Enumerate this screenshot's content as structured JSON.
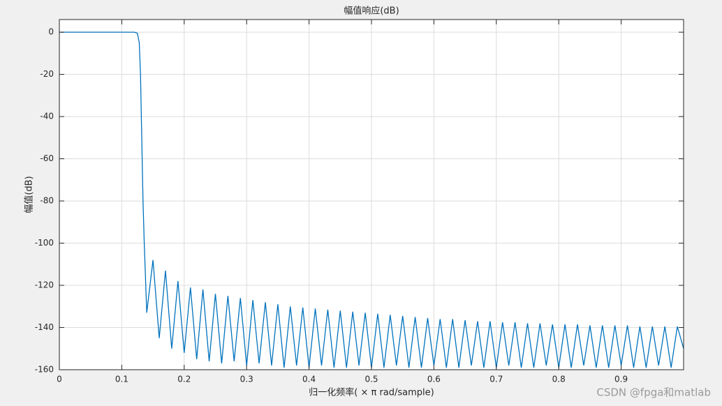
{
  "chart_data": {
    "type": "line",
    "title": "幅值响应(dB)",
    "x_label": "归一化频率( × π  rad/sample)",
    "y_label": "幅值(dB)",
    "watermark": "CSDN @fpga和matlab",
    "xlim": [
      0,
      1
    ],
    "xticks": [
      0,
      0.1,
      0.2,
      0.3,
      0.4,
      0.5,
      0.6,
      0.7,
      0.8,
      0.9
    ],
    "ylim": [
      -160,
      6
    ],
    "yticks": [
      0,
      -20,
      -40,
      -60,
      -80,
      -100,
      -120,
      -140,
      -160
    ],
    "grid": true,
    "series": [
      {
        "color": "#0072bd",
        "x": [
          0,
          0.12,
          0.125,
          0.128,
          0.13,
          0.132,
          0.134,
          0.136,
          0.14,
          0.15,
          0.16,
          0.17,
          0.18,
          0.19,
          0.2,
          0.21,
          0.22,
          0.23,
          0.24,
          0.25,
          0.26,
          0.27,
          0.28,
          0.29,
          0.3,
          0.31,
          0.32,
          0.33,
          0.34,
          0.35,
          0.36,
          0.37,
          0.38,
          0.39,
          0.4,
          0.41,
          0.42,
          0.43,
          0.44,
          0.45,
          0.46,
          0.47,
          0.48,
          0.49,
          0.5,
          0.51,
          0.52,
          0.53,
          0.54,
          0.55,
          0.56,
          0.57,
          0.58,
          0.59,
          0.6,
          0.61,
          0.62,
          0.63,
          0.64,
          0.65,
          0.66,
          0.67,
          0.68,
          0.69,
          0.7,
          0.71,
          0.72,
          0.73,
          0.74,
          0.75,
          0.76,
          0.77,
          0.78,
          0.79,
          0.8,
          0.81,
          0.82,
          0.83,
          0.84,
          0.85,
          0.86,
          0.87,
          0.88,
          0.89,
          0.9,
          0.91,
          0.92,
          0.93,
          0.94,
          0.95,
          0.96,
          0.97,
          0.98,
          0.99,
          1.0
        ],
        "values": [
          0,
          0,
          -0.5,
          -5,
          -20,
          -50,
          -80,
          -100,
          -133,
          -108,
          -145,
          -113,
          -150,
          -118,
          -152,
          -121,
          -155,
          -122,
          -156,
          -124,
          -157,
          -125,
          -156,
          -126,
          -158,
          -127,
          -157,
          -128,
          -158,
          -129,
          -159,
          -130,
          -158,
          -130.5,
          -159,
          -131,
          -158,
          -131.5,
          -159,
          -132,
          -159,
          -132.5,
          -158,
          -133,
          -159,
          -133.5,
          -159,
          -134,
          -158,
          -134.5,
          -159,
          -135,
          -159,
          -135.5,
          -158,
          -136,
          -159,
          -136,
          -159,
          -136.5,
          -158,
          -137,
          -159,
          -137,
          -159,
          -137.5,
          -158,
          -137.5,
          -159,
          -138,
          -159,
          -138,
          -158,
          -138.5,
          -159,
          -138.5,
          -159,
          -138.5,
          -158,
          -139,
          -159,
          -139,
          -159,
          -139,
          -158,
          -139,
          -159,
          -139.5,
          -159,
          -139.5,
          -158,
          -139.5,
          -159,
          -139.5,
          -150
        ]
      }
    ]
  }
}
